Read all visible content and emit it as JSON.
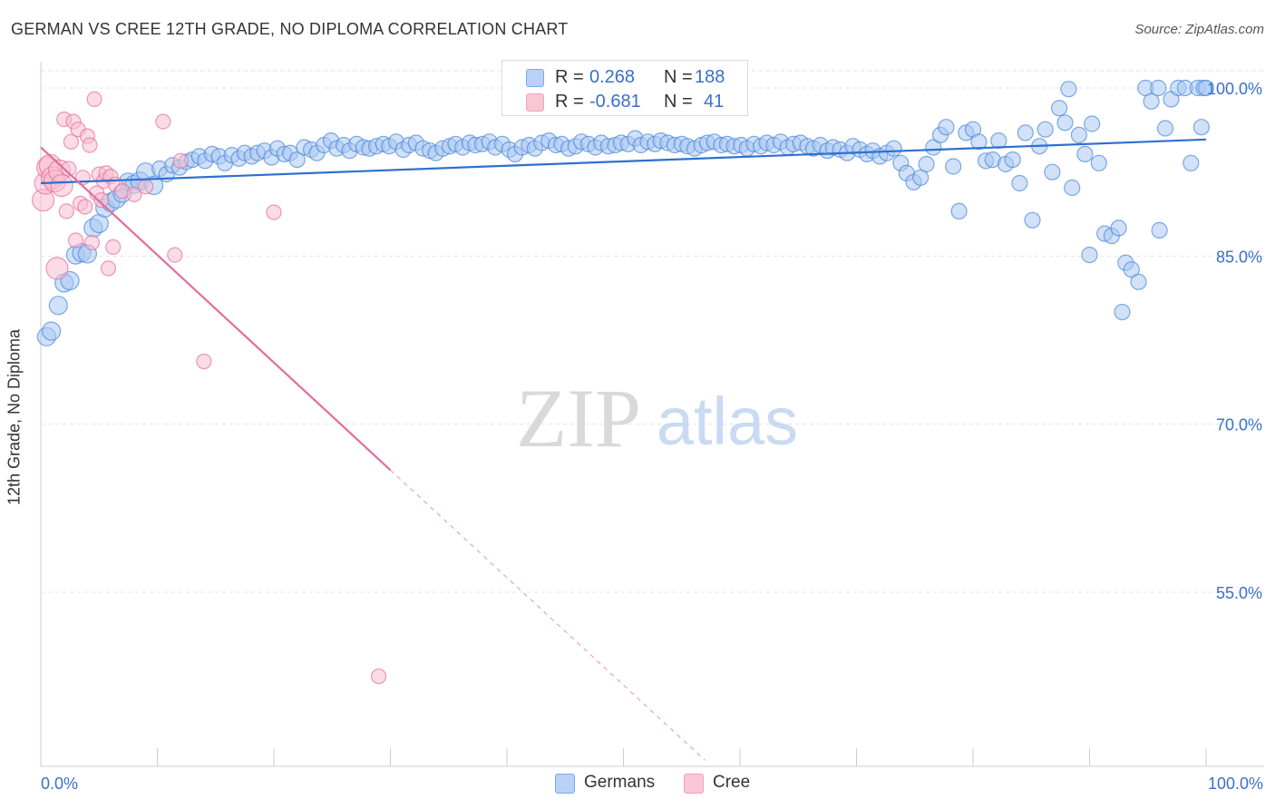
{
  "header": {
    "title": "GERMAN VS CREE 12TH GRADE, NO DIPLOMA CORRELATION CHART",
    "source": "Source: ZipAtlas.com"
  },
  "watermark": {
    "zip": "ZIP",
    "atlas": "atlas"
  },
  "legend_top": {
    "rows": [
      {
        "r_label": "R =",
        "r_value": "0.268",
        "n_label": "N =",
        "n_value": "188",
        "color": "#7aaaf0"
      },
      {
        "r_label": "R =",
        "r_value": "-0.681",
        "n_label": "N =",
        "n_value": "41",
        "color": "#f4a0bb"
      }
    ]
  },
  "legend_bottom": {
    "items": [
      {
        "label": "Germans",
        "color": "#7aaaf0"
      },
      {
        "label": "Cree",
        "color": "#f4a0bb"
      }
    ]
  },
  "chart_data": {
    "type": "scatter",
    "title": "GERMAN VS CREE 12TH GRADE, NO DIPLOMA CORRELATION CHART",
    "xlabel": "",
    "ylabel": "12th Grade, No Diploma",
    "xlim": [
      0,
      100
    ],
    "ylim": [
      40,
      102.5
    ],
    "x_tick_labels": [
      "0.0%",
      "100.0%"
    ],
    "y_ticks": [
      55,
      70,
      85,
      100
    ],
    "y_tick_labels": [
      "55.0%",
      "70.0%",
      "85.0%",
      "100.0%"
    ],
    "grid": true,
    "series": [
      {
        "name": "Germans",
        "color": "#4a86d8",
        "fill": "#a9c8f2",
        "trendline": {
          "x": [
            0,
            100
          ],
          "y": [
            91.5,
            95.4
          ],
          "style": "solid"
        },
        "points": [
          [
            0.5,
            77.8
          ],
          [
            0.9,
            78.3
          ],
          [
            1.5,
            80.6
          ],
          [
            2.0,
            82.6
          ],
          [
            2.5,
            82.8
          ],
          [
            3.0,
            85.1
          ],
          [
            3.5,
            85.3
          ],
          [
            4.0,
            85.2
          ],
          [
            4.5,
            87.5
          ],
          [
            5.0,
            87.9
          ],
          [
            5.5,
            89.3
          ],
          [
            6.0,
            89.8
          ],
          [
            6.5,
            90.1
          ],
          [
            7.0,
            90.6
          ],
          [
            7.5,
            91.6
          ],
          [
            8.0,
            91.4
          ],
          [
            8.5,
            91.7
          ],
          [
            9.0,
            92.5
          ],
          [
            9.7,
            91.3
          ],
          [
            10.2,
            92.8
          ],
          [
            10.8,
            92.3
          ],
          [
            11.3,
            93.1
          ],
          [
            11.9,
            92.9
          ],
          [
            12.5,
            93.4
          ],
          [
            13.0,
            93.6
          ],
          [
            13.6,
            93.9
          ],
          [
            14.1,
            93.5
          ],
          [
            14.7,
            94.1
          ],
          [
            15.3,
            93.9
          ],
          [
            15.8,
            93.3
          ],
          [
            16.4,
            94.0
          ],
          [
            17.0,
            93.7
          ],
          [
            17.5,
            94.2
          ],
          [
            18.1,
            93.9
          ],
          [
            18.6,
            94.2
          ],
          [
            19.2,
            94.4
          ],
          [
            19.8,
            93.8
          ],
          [
            20.3,
            94.6
          ],
          [
            20.9,
            94.1
          ],
          [
            21.4,
            94.2
          ],
          [
            22.0,
            93.6
          ],
          [
            22.6,
            94.7
          ],
          [
            23.2,
            94.5
          ],
          [
            23.7,
            94.2
          ],
          [
            24.3,
            94.9
          ],
          [
            24.9,
            95.3
          ],
          [
            25.4,
            94.6
          ],
          [
            26.0,
            94.9
          ],
          [
            26.5,
            94.4
          ],
          [
            27.1,
            95.0
          ],
          [
            27.7,
            94.7
          ],
          [
            28.2,
            94.6
          ],
          [
            28.8,
            94.8
          ],
          [
            29.4,
            95.0
          ],
          [
            29.9,
            94.8
          ],
          [
            30.5,
            95.2
          ],
          [
            31.1,
            94.5
          ],
          [
            31.6,
            94.9
          ],
          [
            32.2,
            95.1
          ],
          [
            32.8,
            94.6
          ],
          [
            33.4,
            94.4
          ],
          [
            33.9,
            94.2
          ],
          [
            34.5,
            94.6
          ],
          [
            35.1,
            94.8
          ],
          [
            35.6,
            95.0
          ],
          [
            36.2,
            94.7
          ],
          [
            36.8,
            95.1
          ],
          [
            37.3,
            94.9
          ],
          [
            37.9,
            95.0
          ],
          [
            38.5,
            95.2
          ],
          [
            39.0,
            94.7
          ],
          [
            39.6,
            95.0
          ],
          [
            40.2,
            94.5
          ],
          [
            40.7,
            94.1
          ],
          [
            41.3,
            94.7
          ],
          [
            41.9,
            94.9
          ],
          [
            42.4,
            94.6
          ],
          [
            43.0,
            95.1
          ],
          [
            43.6,
            95.3
          ],
          [
            44.2,
            94.9
          ],
          [
            44.7,
            95.0
          ],
          [
            45.3,
            94.6
          ],
          [
            45.9,
            94.8
          ],
          [
            46.4,
            95.2
          ],
          [
            47.0,
            95.0
          ],
          [
            47.6,
            94.7
          ],
          [
            48.1,
            95.1
          ],
          [
            48.7,
            94.8
          ],
          [
            49.3,
            94.9
          ],
          [
            49.8,
            95.1
          ],
          [
            50.4,
            95.0
          ],
          [
            51.0,
            95.5
          ],
          [
            51.5,
            94.9
          ],
          [
            52.1,
            95.2
          ],
          [
            52.7,
            95.0
          ],
          [
            53.2,
            95.3
          ],
          [
            53.8,
            95.1
          ],
          [
            54.4,
            94.9
          ],
          [
            55.0,
            95.0
          ],
          [
            55.5,
            94.8
          ],
          [
            56.1,
            94.6
          ],
          [
            56.7,
            94.9
          ],
          [
            57.2,
            95.1
          ],
          [
            57.8,
            95.2
          ],
          [
            58.4,
            94.9
          ],
          [
            58.9,
            95.0
          ],
          [
            59.5,
            94.8
          ],
          [
            60.1,
            94.9
          ],
          [
            60.6,
            94.6
          ],
          [
            61.2,
            95.0
          ],
          [
            61.8,
            94.8
          ],
          [
            62.3,
            95.1
          ],
          [
            62.9,
            94.9
          ],
          [
            63.5,
            95.2
          ],
          [
            64.1,
            94.7
          ],
          [
            64.6,
            95.0
          ],
          [
            65.2,
            95.1
          ],
          [
            65.8,
            94.8
          ],
          [
            66.3,
            94.6
          ],
          [
            66.9,
            94.9
          ],
          [
            67.5,
            94.4
          ],
          [
            68.0,
            94.7
          ],
          [
            68.6,
            94.5
          ],
          [
            69.2,
            94.2
          ],
          [
            69.7,
            94.8
          ],
          [
            70.3,
            94.5
          ],
          [
            70.9,
            94.1
          ],
          [
            71.4,
            94.4
          ],
          [
            72.0,
            93.9
          ],
          [
            72.6,
            94.2
          ],
          [
            73.2,
            94.6
          ],
          [
            73.8,
            93.3
          ],
          [
            74.3,
            92.4
          ],
          [
            74.9,
            91.6
          ],
          [
            75.5,
            92.0
          ],
          [
            76.0,
            93.2
          ],
          [
            76.6,
            94.7
          ],
          [
            77.2,
            95.8
          ],
          [
            77.7,
            96.5
          ],
          [
            78.3,
            93.0
          ],
          [
            78.8,
            89.0
          ],
          [
            79.4,
            96.0
          ],
          [
            80.0,
            96.3
          ],
          [
            80.5,
            95.2
          ],
          [
            81.1,
            93.5
          ],
          [
            81.7,
            93.6
          ],
          [
            82.2,
            95.3
          ],
          [
            82.8,
            93.2
          ],
          [
            83.4,
            93.6
          ],
          [
            84.0,
            91.5
          ],
          [
            84.5,
            96.0
          ],
          [
            85.1,
            88.2
          ],
          [
            85.7,
            94.8
          ],
          [
            86.2,
            96.3
          ],
          [
            86.8,
            92.5
          ],
          [
            87.4,
            98.2
          ],
          [
            87.9,
            96.9
          ],
          [
            88.5,
            91.1
          ],
          [
            89.1,
            95.8
          ],
          [
            89.6,
            94.1
          ],
          [
            90.2,
            96.8
          ],
          [
            90.8,
            93.3
          ],
          [
            91.3,
            87.0
          ],
          [
            91.9,
            86.8
          ],
          [
            92.5,
            87.5
          ],
          [
            93.1,
            84.4
          ],
          [
            93.6,
            83.8
          ],
          [
            94.2,
            82.7
          ],
          [
            94.8,
            100.0
          ],
          [
            95.3,
            98.8
          ],
          [
            95.9,
            100.0
          ],
          [
            96.5,
            96.4
          ],
          [
            97.0,
            99.0
          ],
          [
            97.6,
            100.0
          ],
          [
            98.2,
            100.0
          ],
          [
            98.7,
            93.3
          ],
          [
            99.3,
            100.0
          ],
          [
            99.6,
            96.5
          ],
          [
            99.8,
            100.0
          ],
          [
            100.0,
            100.0
          ],
          [
            88.2,
            99.9
          ],
          [
            92.8,
            80.0
          ],
          [
            90.0,
            85.1
          ],
          [
            96.0,
            87.3
          ]
        ]
      },
      {
        "name": "Cree",
        "color": "#e46d9a",
        "fill": "#f8bfd1",
        "trendline": {
          "x": [
            0,
            30
          ],
          "y": [
            94.7,
            65.9
          ],
          "style": "solid",
          "extension": {
            "x": [
              30,
              57
            ],
            "y": [
              65.9,
              40
            ]
          }
        },
        "points": [
          [
            0.2,
            90.0
          ],
          [
            0.4,
            91.5
          ],
          [
            0.6,
            92.9
          ],
          [
            0.8,
            93.1
          ],
          [
            1.0,
            92.0
          ],
          [
            1.2,
            91.7
          ],
          [
            1.4,
            83.9
          ],
          [
            1.6,
            92.6
          ],
          [
            1.8,
            91.3
          ],
          [
            2.0,
            97.2
          ],
          [
            2.2,
            89.0
          ],
          [
            2.4,
            92.8
          ],
          [
            2.6,
            95.2
          ],
          [
            2.8,
            97.0
          ],
          [
            3.0,
            86.4
          ],
          [
            3.2,
            96.3
          ],
          [
            3.4,
            89.7
          ],
          [
            3.6,
            92.0
          ],
          [
            3.8,
            89.4
          ],
          [
            4.0,
            95.7
          ],
          [
            4.2,
            94.9
          ],
          [
            4.4,
            86.2
          ],
          [
            4.6,
            99.0
          ],
          [
            4.8,
            90.6
          ],
          [
            5.0,
            92.3
          ],
          [
            5.2,
            90.0
          ],
          [
            5.4,
            91.7
          ],
          [
            5.6,
            92.4
          ],
          [
            5.8,
            83.9
          ],
          [
            6.0,
            92.1
          ],
          [
            6.2,
            85.8
          ],
          [
            6.4,
            91.4
          ],
          [
            7.0,
            90.8
          ],
          [
            8.0,
            90.5
          ],
          [
            9.0,
            91.2
          ],
          [
            10.5,
            97.0
          ],
          [
            11.5,
            85.1
          ],
          [
            12.0,
            93.5
          ],
          [
            14.0,
            75.6
          ],
          [
            20.0,
            88.9
          ],
          [
            29.0,
            47.5
          ]
        ]
      }
    ]
  }
}
